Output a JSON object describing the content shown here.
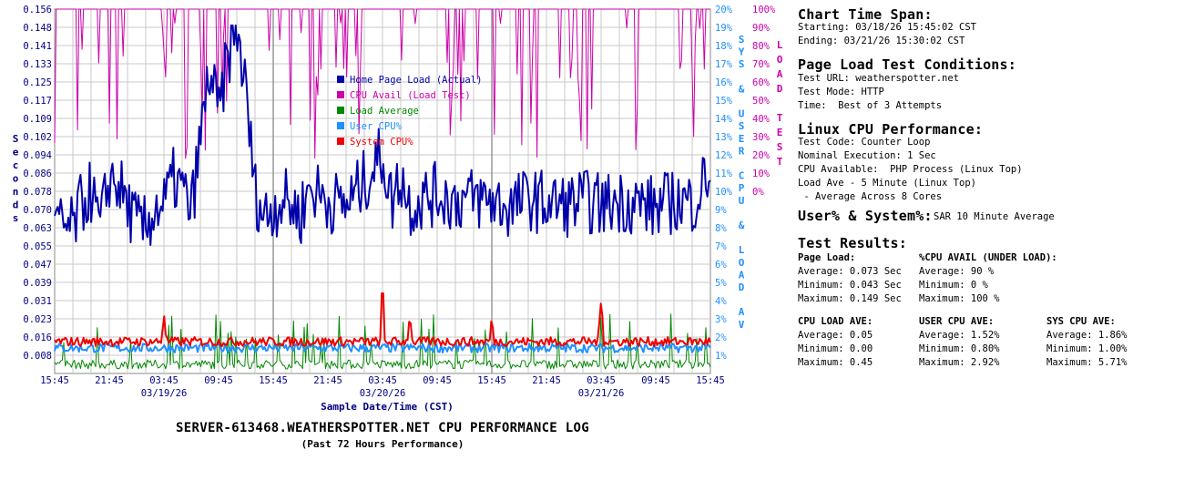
{
  "chart_data": {
    "type": "line",
    "title": "SERVER-613468.WEATHERSPOTTER.NET CPU PERFORMANCE LOG",
    "subtitle": "(Past 72 Hours Performance)",
    "xlabel": "Sample Date/Time (CST)",
    "ylabel_left": "Seconds",
    "ylabel_right_inner": "SYS & USER CPU & LOAD AV",
    "ylabel_right_outer": "LOAD TEST",
    "x_ticks": [
      "15:45",
      "21:45",
      "03:45",
      "09:45",
      "15:45",
      "21:45",
      "03:45",
      "09:45",
      "15:45",
      "21:45",
      "03:45",
      "09:45",
      "15:45"
    ],
    "date_labels": [
      {
        "label": "03/19/26",
        "tick_index": 2
      },
      {
        "label": "03/20/26",
        "tick_index": 6
      },
      {
        "label": "03/21/26",
        "tick_index": 10
      }
    ],
    "y_left_ticks": [
      "0.156",
      "0.148",
      "0.141",
      "0.133",
      "0.125",
      "0.117",
      "0.109",
      "0.102",
      "0.094",
      "0.086",
      "0.078",
      "0.070",
      "0.063",
      "0.055",
      "0.047",
      "0.039",
      "0.031",
      "0.023",
      "0.016",
      "0.008"
    ],
    "y_left_range": [
      0,
      0.156
    ],
    "y_mid_ticks": [
      "20%",
      "19%",
      "18%",
      "17%",
      "16%",
      "15%",
      "14%",
      "13%",
      "12%",
      "11%",
      "10%",
      "9%",
      "8%",
      "7%",
      "6%",
      "5%",
      "4%",
      "3%",
      "2%",
      "1%"
    ],
    "y_mid_range": [
      0,
      20
    ],
    "y_right_ticks": [
      "100%",
      "90%",
      "80%",
      "70%",
      "60%",
      "50%",
      "40%",
      "30%",
      "20%",
      "10%",
      "0%"
    ],
    "y_right_range_units": "percent, 0% at the 10% gridline of the middle axis, 100% at top",
    "legend": [
      {
        "name": "Home Page Load (Actual)",
        "color": "#0000aa"
      },
      {
        "name": "CPU Avail (Load Test)",
        "color": "#cc00aa"
      },
      {
        "name": "Load Average",
        "color": "#008800"
      },
      {
        "name": "User CPU%",
        "color": "#1e90ff"
      },
      {
        "name": "System CPU%",
        "color": "#ee0000"
      }
    ],
    "legend_position": "upper-middle",
    "grid": true,
    "series": [
      {
        "name": "Home Page Load (Actual)",
        "axis": "left_seconds",
        "average": 0.073,
        "min": 0.043,
        "max": 0.149,
        "profile": [
          [
            0,
            0.063
          ],
          [
            2,
            0.062
          ],
          [
            3,
            0.073
          ],
          [
            4,
            0.078
          ],
          [
            5,
            0.062
          ],
          [
            6,
            0.084
          ],
          [
            7,
            0.081
          ],
          [
            8,
            0.072
          ],
          [
            9,
            0.064
          ],
          [
            10,
            0.062
          ],
          [
            11,
            0.071
          ],
          [
            12,
            0.072
          ],
          [
            13,
            0.083
          ],
          [
            14,
            0.079
          ],
          [
            15,
            0.069
          ],
          [
            16,
            0.1
          ],
          [
            17,
            0.13
          ],
          [
            18,
            0.11
          ],
          [
            19,
            0.135
          ],
          [
            20,
            0.149
          ],
          [
            21,
            0.12
          ],
          [
            22,
            0.078
          ],
          [
            23,
            0.067
          ],
          [
            24,
            0.071
          ],
          [
            25,
            0.075
          ],
          [
            26,
            0.072
          ],
          [
            27,
            0.068
          ],
          [
            28,
            0.08
          ],
          [
            30,
            0.074
          ],
          [
            32,
            0.072
          ],
          [
            34,
            0.082
          ],
          [
            36,
            0.094
          ],
          [
            37,
            0.073
          ],
          [
            38,
            0.085
          ],
          [
            39,
            0.072
          ],
          [
            40,
            0.074
          ],
          [
            42,
            0.077
          ],
          [
            44,
            0.074
          ],
          [
            46,
            0.075
          ],
          [
            48,
            0.074
          ],
          [
            50,
            0.071
          ],
          [
            52,
            0.075
          ],
          [
            54,
            0.073
          ],
          [
            56,
            0.072
          ],
          [
            58,
            0.074
          ],
          [
            60,
            0.072
          ],
          [
            62,
            0.074
          ],
          [
            64,
            0.073
          ],
          [
            66,
            0.071
          ],
          [
            68,
            0.074
          ],
          [
            70,
            0.073
          ],
          [
            72,
            0.087
          ]
        ]
      },
      {
        "name": "CPU Avail (Load Test)",
        "axis": "right_percent",
        "average": 90,
        "min": 0,
        "max": 100
      },
      {
        "name": "Load Average",
        "axis": "mid_percent",
        "average": 0.05,
        "min": 0.0,
        "max": 0.45
      },
      {
        "name": "User CPU%",
        "axis": "mid_percent",
        "average": 1.52,
        "min": 0.8,
        "max": 2.92
      },
      {
        "name": "System CPU%",
        "axis": "mid_percent",
        "average": 1.86,
        "min": 1.0,
        "max": 5.71,
        "spikes": [
          [
            12,
            3.3
          ],
          [
            36,
            4.9
          ],
          [
            39,
            3.3
          ],
          [
            48,
            3.2
          ],
          [
            60,
            4.0
          ]
        ]
      }
    ]
  },
  "info": {
    "span_heading": "Chart Time Span:",
    "starting": "Starting: 03/18/26 15:45:02 CST",
    "ending": "Ending: 03/21/26 15:30:02 CST",
    "conditions_heading": "Page Load Test Conditions:",
    "test_url": "Test URL: weatherspotter.net",
    "test_mode": "Test Mode: HTTP",
    "time": "Time:  Best of 3 Attempts",
    "linux_heading": "Linux CPU Performance:",
    "test_code": "Test Code: Counter Loop",
    "nominal": "Nominal Execution: 1 Sec",
    "cpu_available": "CPU Available:  PHP Process (Linux Top)",
    "load_ave": "Load Ave - 5 Minute (Linux Top)",
    "load_ave_note": " - Average Across 8 Cores",
    "user_sys_heading": "User% & System%:",
    "user_sys_note": "SAR 10 Minute Average",
    "results_heading": "Test Results:",
    "page_load_heading": "Page Load:",
    "page_load_avg": "Average: 0.073 Sec",
    "page_load_min": "Minimum: 0.043 Sec",
    "page_load_max": "Maximum: 0.149 Sec",
    "cpu_avail_heading": "%CPU AVAIL (UNDER LOAD):",
    "cpu_avail_avg": "Average: 90 %",
    "cpu_avail_min": "Minimum: 0 %",
    "cpu_avail_max": "Maximum: 100 %",
    "cpu_load_heading": "CPU LOAD AVE:",
    "cpu_load_avg": "Average: 0.05",
    "cpu_load_min": "Minimum: 0.00",
    "cpu_load_max": "Maximum: 0.45",
    "user_cpu_heading": "USER CPU AVE:",
    "user_cpu_avg": "Average: 1.52%",
    "user_cpu_min": "Minimum: 0.80%",
    "user_cpu_max": "Maximum: 2.92%",
    "sys_cpu_heading": "SYS CPU AVE:",
    "sys_cpu_avg": "Average: 1.86%",
    "sys_cpu_min": "Minimum: 1.00%",
    "sys_cpu_max": "Maximum: 5.71%"
  }
}
